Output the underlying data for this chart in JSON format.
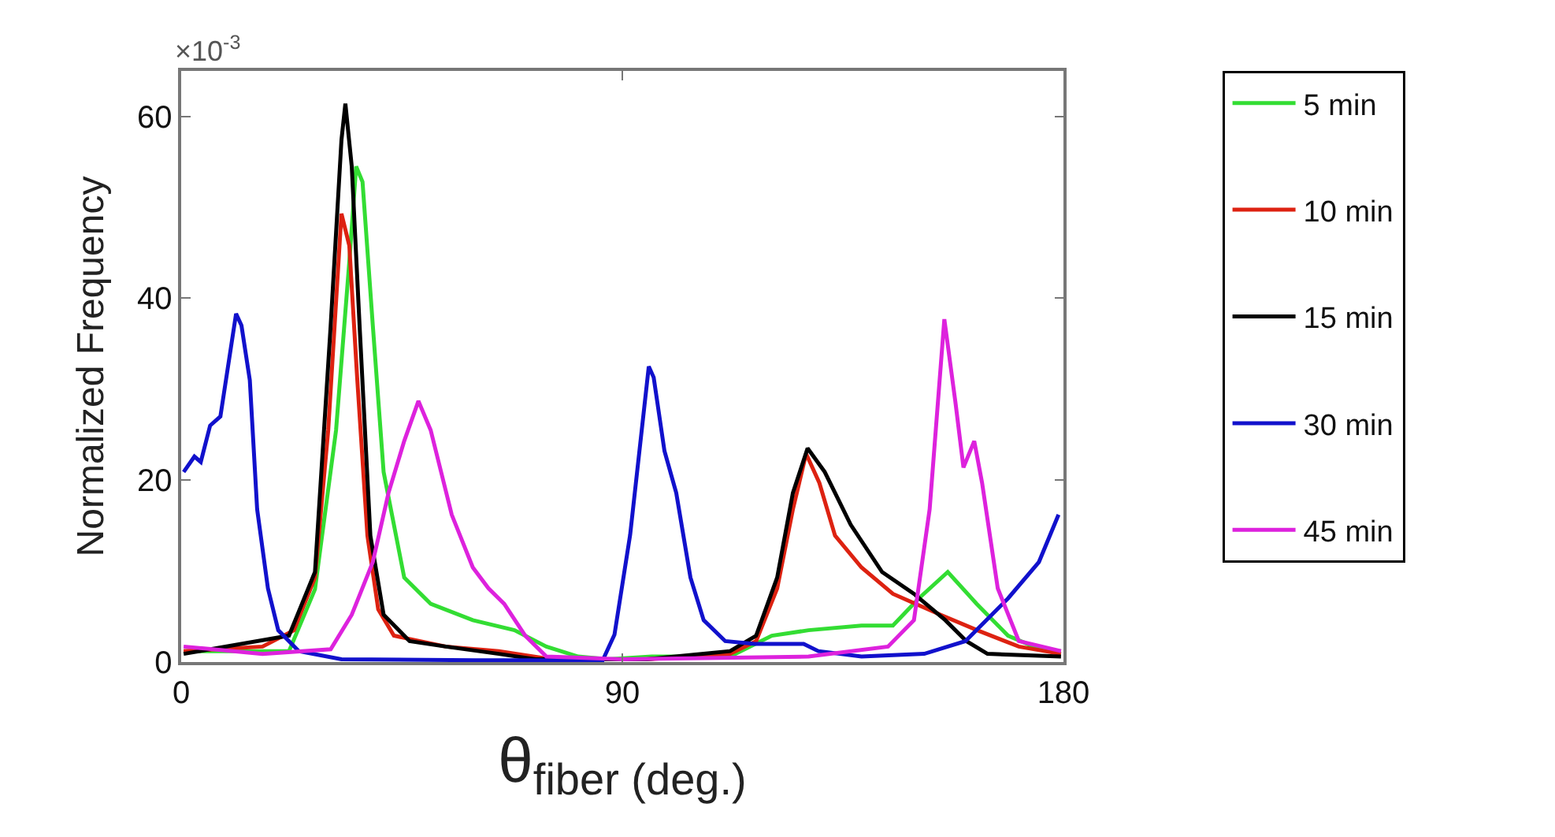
{
  "chart_data": {
    "type": "line",
    "xlabel": "θ$_{fiber (deg.)}$",
    "ylabel": "Normalized Frequency",
    "annotations": [
      "×10$^{-3}$"
    ],
    "xlim": [
      0,
      180
    ],
    "ylim": [
      0,
      65
    ],
    "xticks": [
      0,
      90,
      180
    ],
    "yticks": [
      0,
      20,
      40,
      60
    ],
    "grid": false,
    "legend": "right",
    "marker": "none",
    "line_style": "solid",
    "series": [
      {
        "name": "5 min",
        "color": "#33dd33",
        "x": [
          0.5,
          22,
          27.3,
          31.6,
          34.3,
          35.7,
          37,
          39.1,
          41.3,
          45.5,
          50.9,
          59.5,
          68,
          74.5,
          81,
          87,
          96,
          112,
          120.5,
          128,
          138.8,
          145.2,
          150.5,
          156.4,
          162.3,
          168.7,
          175.2,
          179.5
        ],
        "values": [
          1.2,
          1.2,
          8,
          25.5,
          44,
          54.5,
          52.8,
          37,
          20.9,
          9.3,
          6.4,
          4.6,
          3.5,
          1.7,
          0.6,
          0.3,
          0.6,
          0.6,
          2.9,
          3.5,
          4,
          4,
          7,
          9.9,
          6.4,
          2.9,
          1.4,
          1.2
        ]
      },
      {
        "name": "10 min",
        "color": "#dd2211",
        "x": [
          0.5,
          16.6,
          23,
          27.3,
          30,
          32.7,
          34.3,
          35.9,
          38,
          40.2,
          43.4,
          54,
          64.8,
          75.5,
          95,
          112,
          117.3,
          121.6,
          124.8,
          127.5,
          130.2,
          133.4,
          138.8,
          145.2,
          154.9,
          162.4,
          170.9,
          179.5
        ],
        "values": [
          1.2,
          1.7,
          3.5,
          9.3,
          25.5,
          49.3,
          45.8,
          31.3,
          13.9,
          5.8,
          2.9,
          1.7,
          1.2,
          0.3,
          0.3,
          0.9,
          2.3,
          8.1,
          16.8,
          22.9,
          19.7,
          13.9,
          10.4,
          7.5,
          5.2,
          3.5,
          1.7,
          0.9
        ]
      },
      {
        "name": "15 min",
        "color": "#000000",
        "x": [
          0.5,
          22,
          27.3,
          30.5,
          32.7,
          33.5,
          34.8,
          36.4,
          38.6,
          41.3,
          46.6,
          54,
          64.8,
          72.3,
          95,
          112,
          117.3,
          121.6,
          124.8,
          127.8,
          131.3,
          136.6,
          143,
          149.5,
          155.9,
          160.2,
          164.5,
          179.5
        ],
        "values": [
          0.9,
          2.9,
          9.9,
          37,
          57.4,
          61.4,
          54.5,
          37,
          13.9,
          5.2,
          2.3,
          1.7,
          0.9,
          0.3,
          0.3,
          1.2,
          2.9,
          9.3,
          18.6,
          23.5,
          20.9,
          15.1,
          9.9,
          7.5,
          4.6,
          2.3,
          0.9,
          0.6
        ]
      },
      {
        "name": "30 min",
        "color": "#1111cc",
        "x": [
          0.5,
          2.7,
          4,
          5.9,
          8,
          11.2,
          12.3,
          14,
          15.5,
          17.7,
          19.8,
          24,
          32.7,
          60,
          86,
          88.4,
          91.6,
          95.4,
          96.4,
          98.6,
          101,
          103.9,
          106.6,
          111,
          117,
          127,
          130,
          138.8,
          151.6,
          160,
          168.7,
          175,
          179
        ],
        "values": [
          20.9,
          22.6,
          22,
          26,
          27,
          38.3,
          37,
          31,
          16.8,
          8.1,
          3.5,
          1.2,
          0.3,
          0.2,
          0.2,
          3,
          14,
          32.5,
          31.3,
          23.2,
          18.6,
          9.3,
          4.6,
          2.3,
          2,
          2,
          1.2,
          0.6,
          0.9,
          2.3,
          7,
          11,
          16.2
        ]
      },
      {
        "name": "45 min",
        "color": "#dd22dd",
        "x": [
          0.5,
          16.6,
          30.5,
          34.8,
          39.1,
          42.3,
          45.5,
          48.4,
          50.9,
          55.2,
          59.5,
          62.7,
          65.9,
          70.2,
          74.5,
          90,
          128,
          144.2,
          149.5,
          152.7,
          155.7,
          158,
          159.6,
          161.8,
          163.4,
          166.6,
          170.9,
          179.5
        ],
        "values": [
          1.7,
          0.9,
          1.4,
          5.2,
          11,
          18.6,
          24.3,
          28.7,
          25.5,
          16.2,
          10.4,
          8.1,
          6.4,
          2.9,
          0.6,
          0.3,
          0.6,
          1.7,
          4.6,
          16.8,
          37.7,
          28.4,
          21.4,
          24.3,
          19.7,
          8.1,
          2.3,
          1.2
        ]
      }
    ]
  }
}
